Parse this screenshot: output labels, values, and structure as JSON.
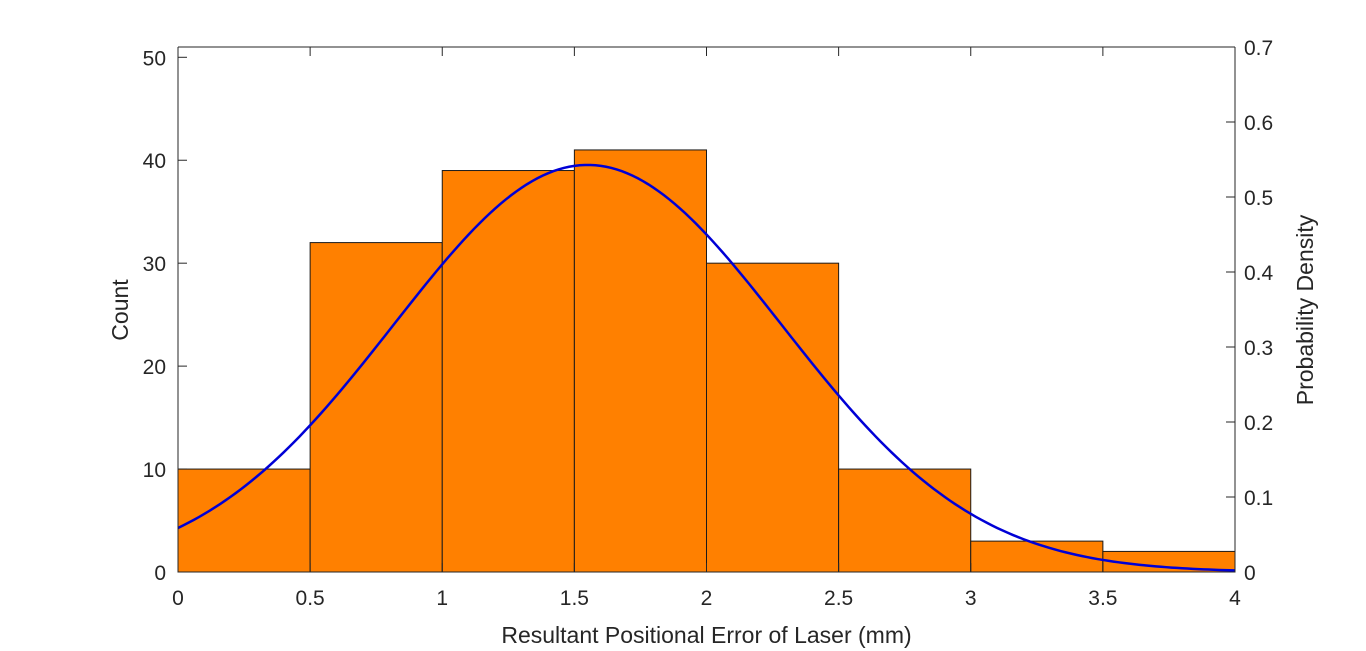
{
  "chart_data": {
    "type": "bar",
    "subtype": "histogram with fitted normal pdf",
    "bins": [
      {
        "x0": 0.0,
        "x1": 0.5,
        "count": 10
      },
      {
        "x0": 0.5,
        "x1": 1.0,
        "count": 32
      },
      {
        "x0": 1.0,
        "x1": 1.5,
        "count": 39
      },
      {
        "x0": 1.5,
        "x1": 2.0,
        "count": 41
      },
      {
        "x0": 2.0,
        "x1": 2.5,
        "count": 30
      },
      {
        "x0": 2.5,
        "x1": 3.0,
        "count": 10
      },
      {
        "x0": 3.0,
        "x1": 3.5,
        "count": 3
      },
      {
        "x0": 3.5,
        "x1": 4.0,
        "count": 2
      }
    ],
    "pdf_curve": {
      "distribution": "normal",
      "mean": 1.55,
      "sd": 0.735
    },
    "xlabel": "Resultant Positional Error of Laser (mm)",
    "ylabel_left": "Count",
    "ylabel_right": "Probability Density",
    "xlim": [
      0,
      4
    ],
    "ylim_left": [
      0,
      51
    ],
    "ylim_right": [
      0,
      0.7
    ],
    "x_ticks": [
      "0",
      "0.5",
      "1",
      "1.5",
      "2",
      "2.5",
      "3",
      "3.5",
      "4"
    ],
    "y_ticks_left": [
      "0",
      "10",
      "20",
      "30",
      "40",
      "50"
    ],
    "y_ticks_right": [
      "0",
      "0.1",
      "0.2",
      "0.3",
      "0.4",
      "0.5",
      "0.6",
      "0.7"
    ],
    "grid": false,
    "colors": {
      "bars": "#ff8000",
      "bar_edge": "#1a1a1a",
      "curve": "#0000d6"
    }
  }
}
